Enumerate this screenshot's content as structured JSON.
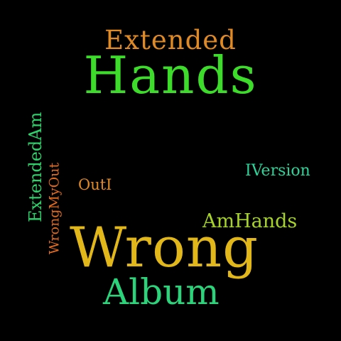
{
  "words": [
    {
      "text": "Extended",
      "color": "#e08a25"
    },
    {
      "text": "Hands",
      "color": "#3ddc2b"
    },
    {
      "text": "ExtendedAm",
      "color": "#2cd36a"
    },
    {
      "text": "WrongMyOut",
      "color": "#e36b1c"
    },
    {
      "text": "IVersion",
      "color": "#2cd39a"
    },
    {
      "text": "OutI",
      "color": "#e08a25"
    },
    {
      "text": "AmHands",
      "color": "#a6d22a"
    },
    {
      "text": "Wrong",
      "color": "#e2b71a"
    },
    {
      "text": "Album",
      "color": "#2bd37a"
    }
  ]
}
